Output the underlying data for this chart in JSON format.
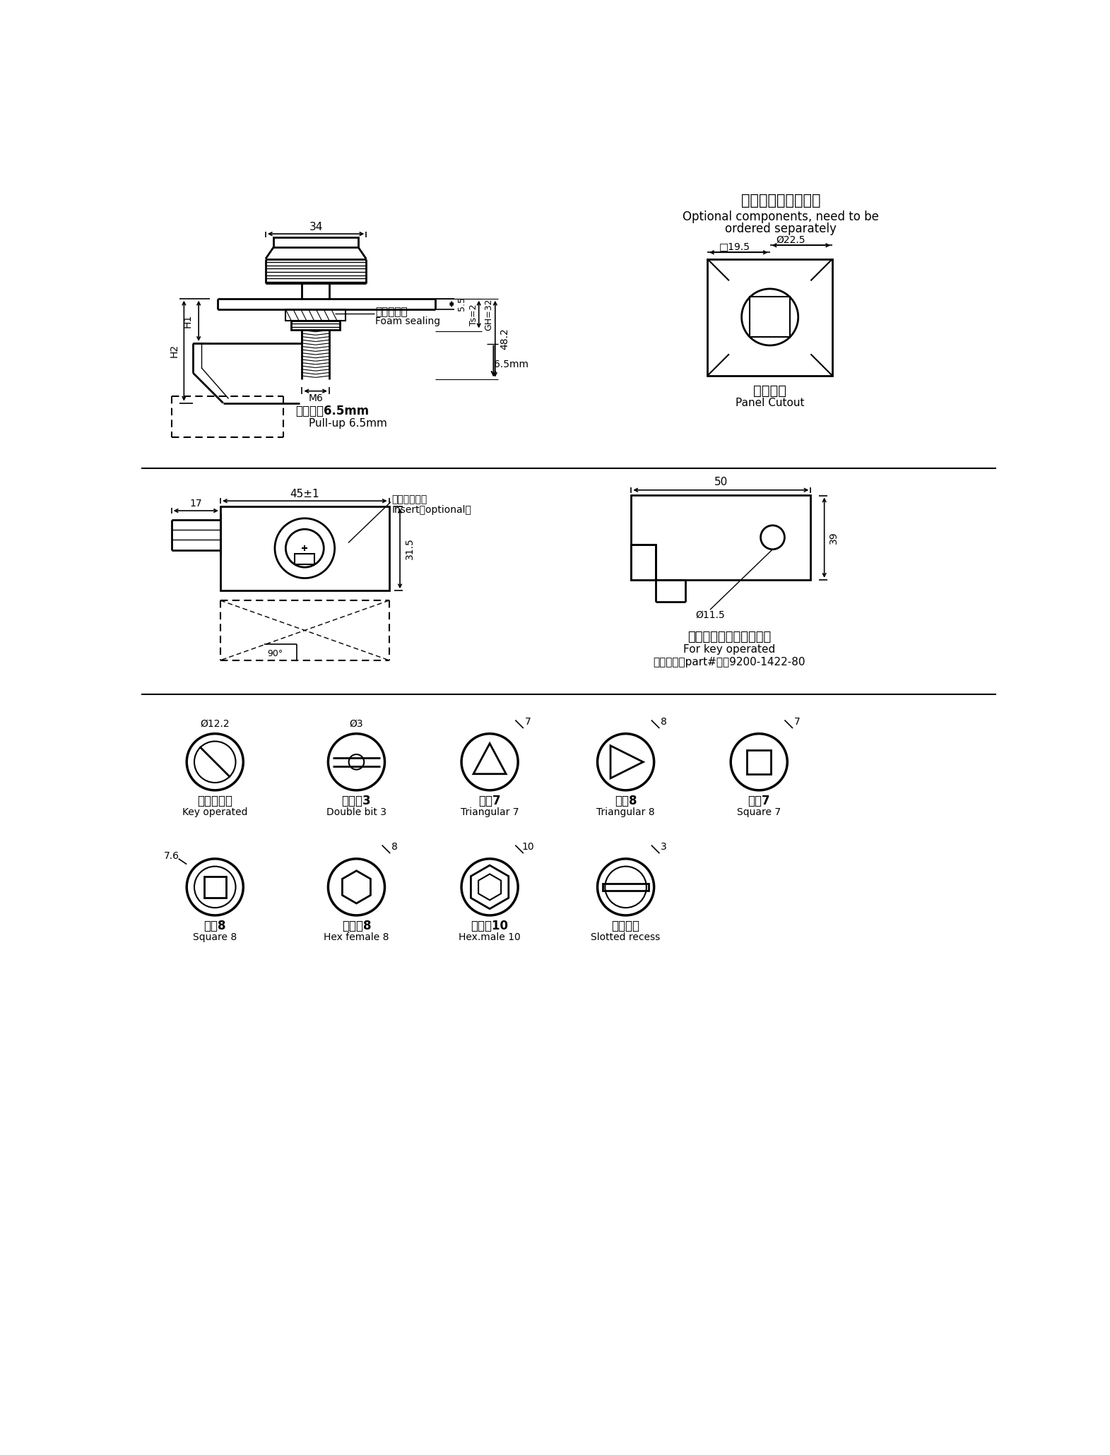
{
  "bg_color": "#ffffff",
  "line_color": "#000000",
  "text_color": "#000000",
  "title_top_right_zh": "选配件，需单独订购",
  "title_top_right_en1": "Optional components, need to be",
  "title_top_right_en2": "ordered separately",
  "panel_cutout_zh": "开孔尺寸",
  "panel_cutout_en": "Panel Cutout",
  "dim_19_5": "□19.5",
  "dim_22_5": "Ø22.5",
  "foam_zh": "发泡橡胶帯",
  "foam_en": "Foam sealing",
  "compress_zh": "压缩量：6.5mm",
  "compress_en": "Pull-up 6.5mm",
  "insert_zh": "锁芯（选配）",
  "insert_en": "Insert（optional）",
  "key_zh": "钒匙操纵型锁芯专用钒匙",
  "key_en": "For key operated",
  "part_num": "产品编号（part#）：9200-1422-80",
  "type1_zh": "钒匙操纵型",
  "type1_en": "Key operated",
  "type1_dim": "Ø12.2",
  "type2_zh": "双翅型3",
  "type2_en": "Double bit 3",
  "type2_dim": "Ø3",
  "type3_zh": "三角7",
  "type3_en": "Triangular 7",
  "type3_dim": "7",
  "type4_zh": "三角8",
  "type4_en": "Triangular 8",
  "type4_dim": "8",
  "type5_zh": "四方7",
  "type5_en": "Square 7",
  "type5_dim": "7",
  "type6_zh": "四方8",
  "type6_en": "Square 8",
  "type6_dim": "7.6",
  "type7_zh": "内六角8",
  "type7_en": "Hex female 8",
  "type7_dim": "8",
  "type8_zh": "外六角10",
  "type8_en": "Hex.male 10",
  "type8_dim": "10",
  "type9_zh": "一字槽型",
  "type9_en": "Slotted recess",
  "type9_dim": "3"
}
